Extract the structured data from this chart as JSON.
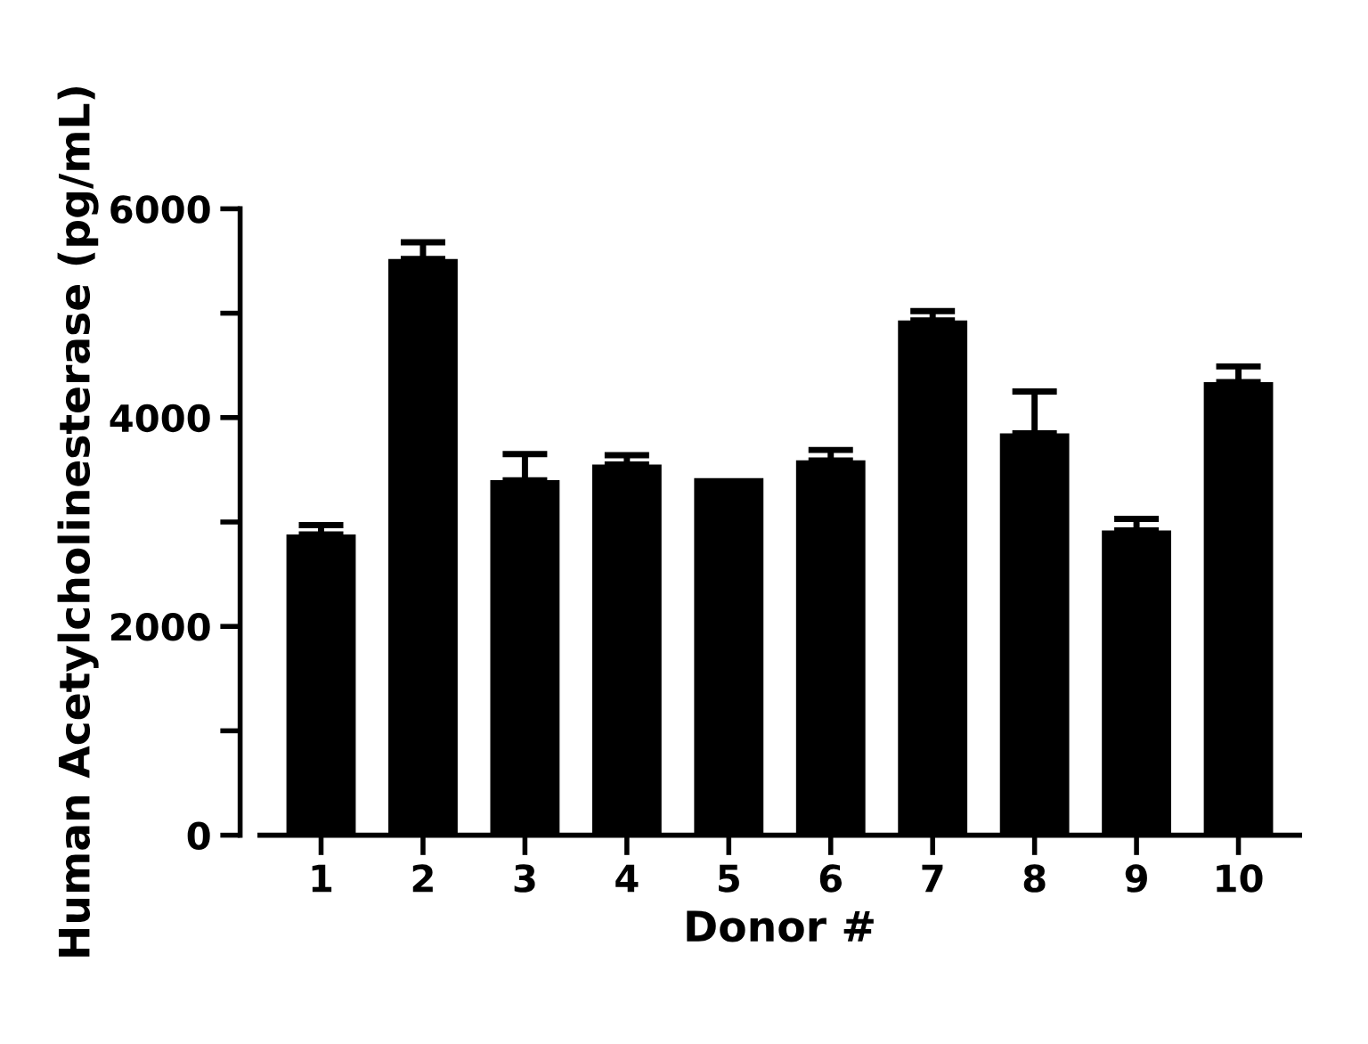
{
  "chart_data": {
    "type": "bar",
    "xlabel": "Donor #",
    "ylabel": "Human Acetylcholinesterase (pg/mL)",
    "categories": [
      "1",
      "2",
      "3",
      "4",
      "5",
      "6",
      "7",
      "8",
      "9",
      "10"
    ],
    "values": [
      2880,
      5520,
      3400,
      3550,
      3420,
      3590,
      4930,
      3850,
      2920,
      4340
    ],
    "errors": [
      [
        2880,
        2970
      ],
      [
        5520,
        5680
      ],
      [
        3400,
        3650
      ],
      [
        3550,
        3640
      ],
      null,
      [
        3590,
        3690
      ],
      [
        4930,
        5020
      ],
      [
        3850,
        4250
      ],
      [
        2920,
        3030
      ],
      [
        4340,
        4490
      ]
    ],
    "color": "#000000",
    "ylim": [
      0,
      6000
    ],
    "yticks": [
      0,
      {
        "value": 1000,
        "label": null
      },
      2000,
      {
        "value": 3000,
        "label": null
      },
      4000,
      {
        "value": 5000,
        "label": null
      },
      6000
    ],
    "grid": false,
    "legend": false
  }
}
